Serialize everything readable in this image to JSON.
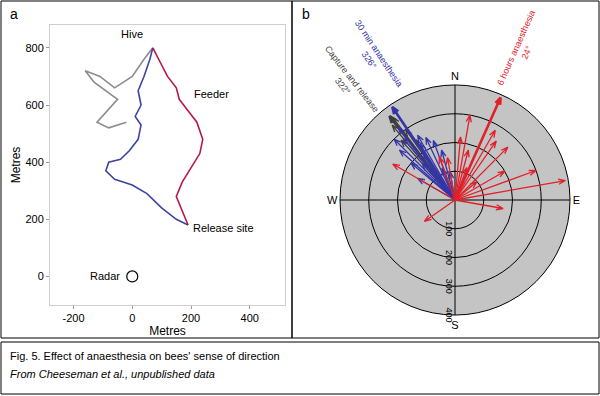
{
  "caption": {
    "title": "Fig. 5. Effect of anaesthesia on bees' sense of direction",
    "source": "From Cheeseman et al., unpublished data"
  },
  "chart_data": [
    {
      "type": "line",
      "title": "a",
      "xlabel": "Metres",
      "ylabel": "Metres",
      "xlim": [
        -280,
        520
      ],
      "xticks": [
        -200,
        0,
        200,
        400
      ],
      "ylim": [
        -100,
        880
      ],
      "yticks": [
        0,
        200,
        400,
        600,
        800
      ],
      "grid": false,
      "series": [
        {
          "color": "#8c8c8c",
          "x": [
            -20,
            -80,
            -120,
            -50,
            -130,
            -160,
            -110,
            -60,
            0,
            40,
            70
          ],
          "values": [
            540,
            520,
            540,
            620,
            680,
            720,
            700,
            660,
            700,
            760,
            800
          ]
        },
        {
          "color": "#3c46a0",
          "x": [
            190,
            150,
            100,
            50,
            0,
            -60,
            -90,
            -80,
            -40,
            -10,
            20,
            30,
            10,
            30,
            20,
            40,
            60,
            70
          ],
          "values": [
            180,
            200,
            240,
            290,
            320,
            340,
            370,
            400,
            410,
            440,
            480,
            530,
            560,
            600,
            650,
            700,
            760,
            800
          ]
        },
        {
          "color": "#b5174a",
          "x": [
            190,
            170,
            150,
            170,
            200,
            230,
            240,
            220,
            190,
            160,
            150,
            120,
            100,
            80,
            70
          ],
          "values": [
            180,
            230,
            280,
            330,
            380,
            430,
            480,
            540,
            580,
            620,
            660,
            700,
            740,
            780,
            800
          ]
        }
      ],
      "annotations": [
        {
          "text": "Hive",
          "x": 0,
          "y": 850
        },
        {
          "text": "Feeder",
          "x": 270,
          "y": 640
        },
        {
          "text": "Release site",
          "x": 310,
          "y": 170
        },
        {
          "text": "Radar",
          "x": 0,
          "y": 0,
          "marker": "circle"
        }
      ]
    },
    {
      "type": "polar",
      "title": "b",
      "rlim": [
        0,
        400
      ],
      "rticks": [
        100,
        200,
        300,
        400
      ],
      "theta_ticks": [
        {
          "value": 0,
          "label": "N"
        },
        {
          "value": 90,
          "label": "E"
        },
        {
          "value": 180,
          "label": "S"
        },
        {
          "value": 270,
          "label": "W"
        }
      ],
      "grid": true,
      "series": [
        {
          "name": "Capture and release",
          "color": "#3d3d3d",
          "theta": [
            318,
            320,
            323,
            325,
            327
          ],
          "r": [
            280,
            340,
            360,
            300,
            250
          ],
          "mean": {
            "theta": 322,
            "r": 370,
            "label": "322°"
          }
        },
        {
          "name": "30 min anaesthesia",
          "color": "#3535a8",
          "theta": [
            315,
            320,
            330,
            335,
            340,
            310,
            325,
            345,
            300,
            318,
            328,
            338,
            312,
            350,
            322
          ],
          "r": [
            300,
            280,
            260,
            240,
            220,
            200,
            190,
            180,
            150,
            170,
            230,
            120,
            260,
            100,
            320
          ],
          "mean": {
            "theta": 326,
            "r": 390,
            "label": "326°"
          }
        },
        {
          "name": "6 hours anaesthesia",
          "color": "#e0202a",
          "theta": [
            10,
            30,
            45,
            60,
            80,
            15,
            35,
            5,
            350,
            300,
            340,
            235,
            20,
            50,
            100,
            70
          ],
          "r": [
            300,
            280,
            260,
            200,
            390,
            180,
            250,
            220,
            150,
            250,
            160,
            130,
            120,
            100,
            170,
            300
          ],
          "mean": {
            "theta": 24,
            "r": 390,
            "label": "24°"
          }
        }
      ]
    }
  ]
}
